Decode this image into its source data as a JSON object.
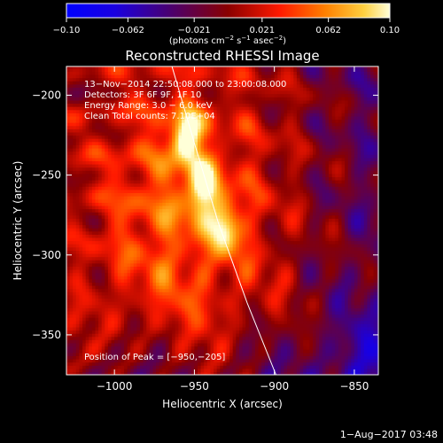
{
  "chart_data": {
    "type": "heatmap",
    "title": "Reconstructed RHESSI Image",
    "xlabel": "Heliocentric X (arcsec)",
    "ylabel": "Heliocentric Y (arcsec)",
    "xlim": [
      -1030,
      -835
    ],
    "ylim": [
      -375,
      -182
    ],
    "x_ticks": [
      -1000,
      -950,
      -900,
      -850
    ],
    "x_tick_labels": [
      "−1000",
      "−950",
      "−900",
      "−850"
    ],
    "y_ticks": [
      -200,
      -250,
      -300,
      -350
    ],
    "y_tick_labels": [
      "−200",
      "−250",
      "−300",
      "−350"
    ],
    "colorbar": {
      "range": [
        -0.1,
        0.1
      ],
      "ticks": [
        -0.1,
        -0.062,
        -0.021,
        0.021,
        0.062,
        0.1
      ],
      "tick_labels": [
        "−0.10",
        "−0.062",
        "−0.021",
        "0.021",
        "0.062",
        "0.10"
      ],
      "units_main": "(photons cm",
      "units_exp1": "−2",
      "units_mid1": " s",
      "units_exp2": "−1",
      "units_mid2": " asec",
      "units_exp3": "−2",
      "units_end": ")"
    },
    "annotations": [
      "13−Nov−2014 22:50:08.000 to 23:00:08.000",
      "Detectors: 3F 6F 9F, 1F 10",
      "Energy Range: 3.0 − 6.0 keV",
      "Clean    Total counts: 7.10E+04"
    ],
    "peak_label": "Position of Peak = [−950,−205]",
    "peak": [
      -950,
      -205
    ],
    "sources": [
      {
        "x": -955,
        "y": -225,
        "value": 0.1
      },
      {
        "x": -945,
        "y": -258,
        "value": 0.08
      },
      {
        "x": -930,
        "y": -282,
        "value": 0.07
      }
    ],
    "limb": [
      [
        -964,
        -182
      ],
      [
        -950,
        -230
      ],
      [
        -935,
        -280
      ],
      [
        -917,
        -330
      ],
      [
        -899,
        -375
      ]
    ],
    "grid": false
  },
  "footer": {
    "date": "1−Aug−2017 03:48"
  }
}
